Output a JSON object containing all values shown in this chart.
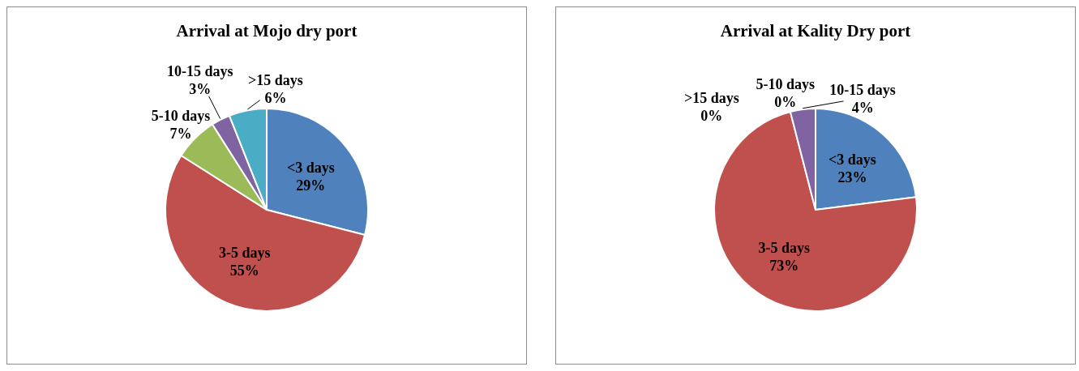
{
  "chart_data": [
    {
      "type": "pie",
      "title": "Arrival  at Mojo dry port",
      "categories": [
        "<3 days",
        "3-5 days",
        "5-10 days",
        "10-15 days",
        ">15 days"
      ],
      "values": [
        29,
        55,
        7,
        3,
        6
      ],
      "colors": [
        "#4f81bd",
        "#c0504d",
        "#9bbb59",
        "#8064a2",
        "#4bacc6"
      ],
      "value_labels": [
        "29%",
        "55%",
        "7%",
        "3%",
        "6%"
      ]
    },
    {
      "type": "pie",
      "title": "Arrival  at Kality Dry port",
      "categories": [
        "<3 days",
        "3-5 days",
        "5-10 days",
        "10-15 days",
        ">15 days"
      ],
      "values": [
        23,
        73,
        0,
        4,
        0
      ],
      "colors": [
        "#4f81bd",
        "#c0504d",
        "#9bbb59",
        "#8064a2",
        "#4bacc6"
      ],
      "value_labels": [
        "23%",
        "73%",
        "0%",
        "4%",
        "0%"
      ]
    }
  ]
}
